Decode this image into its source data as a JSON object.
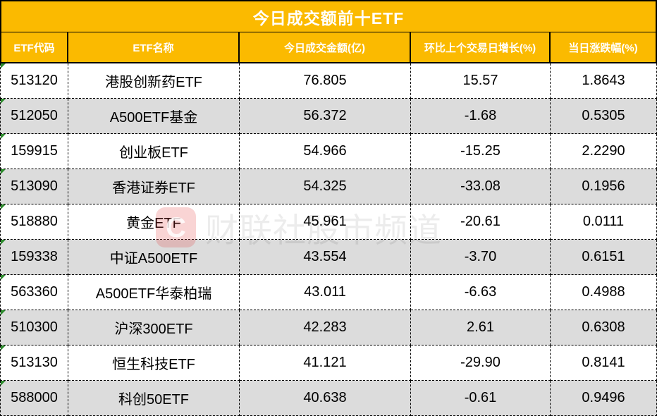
{
  "chart_data": {
    "type": "table",
    "title": "今日成交额前十ETF",
    "columns": [
      "ETF代码",
      "ETF名称",
      "今日成交金额(亿)",
      "环比上个交易日增长(%)",
      "当日涨跌幅(%)"
    ],
    "rows": [
      [
        "513120",
        "港股创新药ETF",
        "76.805",
        "15.57",
        "1.8643"
      ],
      [
        "512050",
        "A500ETF基金",
        "56.372",
        "-1.68",
        "0.5305"
      ],
      [
        "159915",
        "创业板ETF",
        "54.966",
        "-15.25",
        "2.2290"
      ],
      [
        "513090",
        "香港证券ETF",
        "54.325",
        "-33.08",
        "0.1956"
      ],
      [
        "518880",
        "黄金ETF",
        "45.961",
        "-20.61",
        "0.0111"
      ],
      [
        "159338",
        "中证A500ETF",
        "43.554",
        "-3.70",
        "0.6151"
      ],
      [
        "563360",
        "A500ETF华泰柏瑞",
        "43.011",
        "-6.63",
        "0.4988"
      ],
      [
        "510300",
        "沪深300ETF",
        "42.283",
        "2.61",
        "0.6308"
      ],
      [
        "513130",
        "恒生科技ETF",
        "41.121",
        "-29.90",
        "0.8141"
      ],
      [
        "588000",
        "科创50ETF",
        "40.638",
        "-0.61",
        "0.9496"
      ]
    ],
    "layout_hints": {
      "alternating_row_shading": true,
      "all_cells_centered": true,
      "error_indicator_triangles_on_code_cells": true
    }
  },
  "watermark": {
    "logo_letter": "C",
    "text": "财联社股市频道"
  },
  "colors": {
    "header_bg": "#FBBA00",
    "header_text": "#FFFFFF",
    "alt_row_bg": "#DCDCDC",
    "row_bg": "#FFFFFF",
    "body_text": "#000000",
    "watermark_red": "#E23C39",
    "error_triangle_green": "#2E8B2E"
  }
}
